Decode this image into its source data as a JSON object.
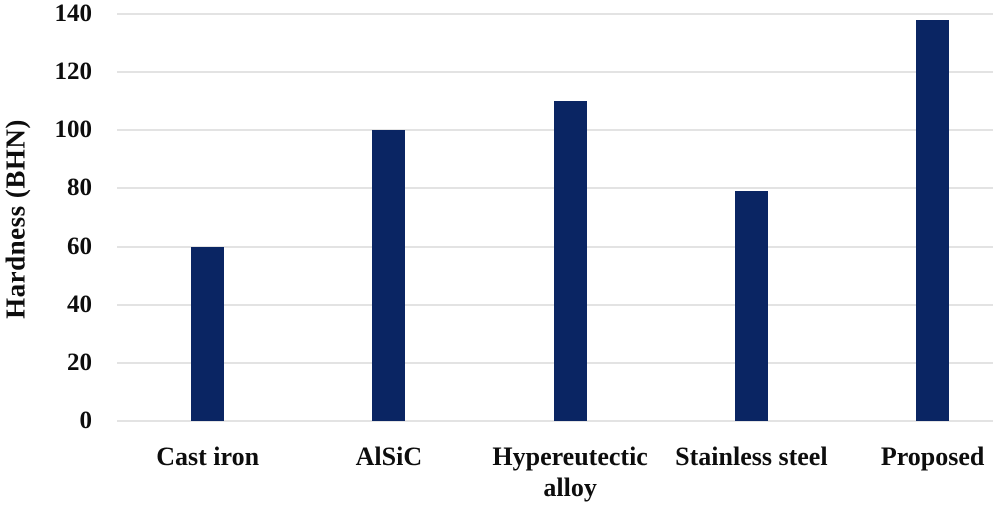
{
  "chart_data": {
    "type": "bar",
    "title": "",
    "categories": [
      "Cast iron",
      "AlSiC",
      "Hypereutectic alloy",
      "Stainless steel",
      "Proposed"
    ],
    "values": [
      60,
      100,
      110,
      79,
      138
    ],
    "xlabel": "",
    "ylabel": "Hardness (BHN)",
    "ylim": [
      0,
      140
    ],
    "yticks": [
      0,
      20,
      40,
      60,
      80,
      100,
      120,
      140
    ],
    "grid": true,
    "legend": false,
    "colors": {
      "bar_fill": "#0A2563",
      "gridline": "#E3E3E3",
      "text": "#0D0D0D",
      "background": "#FFFFFF"
    }
  }
}
